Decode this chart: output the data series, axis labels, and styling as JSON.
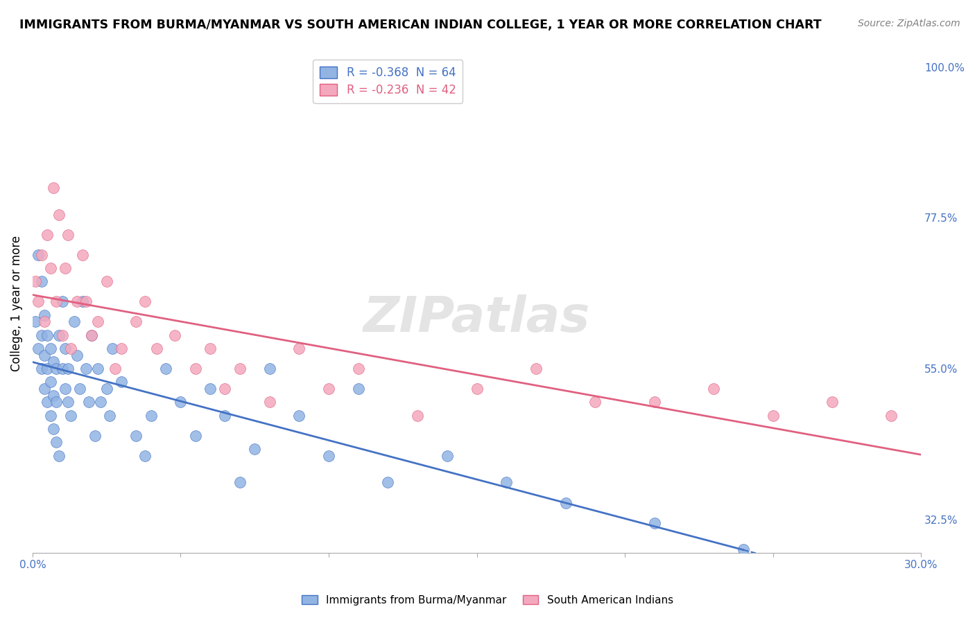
{
  "title": "IMMIGRANTS FROM BURMA/MYANMAR VS SOUTH AMERICAN INDIAN COLLEGE, 1 YEAR OR MORE CORRELATION CHART",
  "source": "Source: ZipAtlas.com",
  "ylabel": "College, 1 year or more",
  "xlim": [
    0.0,
    0.3
  ],
  "ylim": [
    0.275,
    1.02
  ],
  "yticks": [
    0.325,
    0.55,
    0.775,
    1.0
  ],
  "ytick_labels": [
    "32.5%",
    "55.0%",
    "77.5%",
    "100.0%"
  ],
  "xticks": [
    0.0,
    0.05,
    0.1,
    0.15,
    0.2,
    0.25,
    0.3
  ],
  "xtick_labels": [
    "0.0%",
    "",
    "",
    "",
    "",
    "",
    "30.0%"
  ],
  "blue_R": -0.368,
  "blue_N": 64,
  "pink_R": -0.236,
  "pink_N": 42,
  "blue_color": "#92B4E3",
  "pink_color": "#F4A8BE",
  "blue_line_color": "#4472C4",
  "pink_line_color": "#E06080",
  "watermark": "ZIPatlas",
  "legend_label_blue": "Immigrants from Burma/Myanmar",
  "legend_label_pink": "South American Indians",
  "blue_x": [
    0.001,
    0.002,
    0.002,
    0.003,
    0.003,
    0.003,
    0.004,
    0.004,
    0.004,
    0.005,
    0.005,
    0.005,
    0.006,
    0.006,
    0.006,
    0.007,
    0.007,
    0.007,
    0.008,
    0.008,
    0.008,
    0.009,
    0.009,
    0.01,
    0.01,
    0.011,
    0.011,
    0.012,
    0.012,
    0.013,
    0.014,
    0.015,
    0.016,
    0.017,
    0.018,
    0.019,
    0.02,
    0.021,
    0.022,
    0.023,
    0.025,
    0.026,
    0.027,
    0.03,
    0.035,
    0.038,
    0.04,
    0.045,
    0.05,
    0.055,
    0.06,
    0.065,
    0.07,
    0.075,
    0.08,
    0.09,
    0.1,
    0.11,
    0.12,
    0.14,
    0.16,
    0.18,
    0.21,
    0.24
  ],
  "blue_y": [
    0.62,
    0.58,
    0.72,
    0.55,
    0.6,
    0.68,
    0.52,
    0.57,
    0.63,
    0.5,
    0.55,
    0.6,
    0.48,
    0.53,
    0.58,
    0.46,
    0.51,
    0.56,
    0.44,
    0.5,
    0.55,
    0.42,
    0.6,
    0.55,
    0.65,
    0.52,
    0.58,
    0.5,
    0.55,
    0.48,
    0.62,
    0.57,
    0.52,
    0.65,
    0.55,
    0.5,
    0.6,
    0.45,
    0.55,
    0.5,
    0.52,
    0.48,
    0.58,
    0.53,
    0.45,
    0.42,
    0.48,
    0.55,
    0.5,
    0.45,
    0.52,
    0.48,
    0.38,
    0.43,
    0.55,
    0.48,
    0.42,
    0.52,
    0.38,
    0.42,
    0.38,
    0.35,
    0.32,
    0.28
  ],
  "pink_x": [
    0.001,
    0.002,
    0.003,
    0.004,
    0.005,
    0.006,
    0.007,
    0.008,
    0.009,
    0.01,
    0.011,
    0.012,
    0.013,
    0.015,
    0.017,
    0.018,
    0.02,
    0.022,
    0.025,
    0.028,
    0.03,
    0.035,
    0.038,
    0.042,
    0.048,
    0.055,
    0.06,
    0.065,
    0.07,
    0.08,
    0.09,
    0.1,
    0.11,
    0.13,
    0.15,
    0.17,
    0.19,
    0.21,
    0.23,
    0.25,
    0.27,
    0.29
  ],
  "pink_y": [
    0.68,
    0.65,
    0.72,
    0.62,
    0.75,
    0.7,
    0.82,
    0.65,
    0.78,
    0.6,
    0.7,
    0.75,
    0.58,
    0.65,
    0.72,
    0.65,
    0.6,
    0.62,
    0.68,
    0.55,
    0.58,
    0.62,
    0.65,
    0.58,
    0.6,
    0.55,
    0.58,
    0.52,
    0.55,
    0.5,
    0.58,
    0.52,
    0.55,
    0.48,
    0.52,
    0.55,
    0.5,
    0.5,
    0.52,
    0.48,
    0.5,
    0.48
  ]
}
